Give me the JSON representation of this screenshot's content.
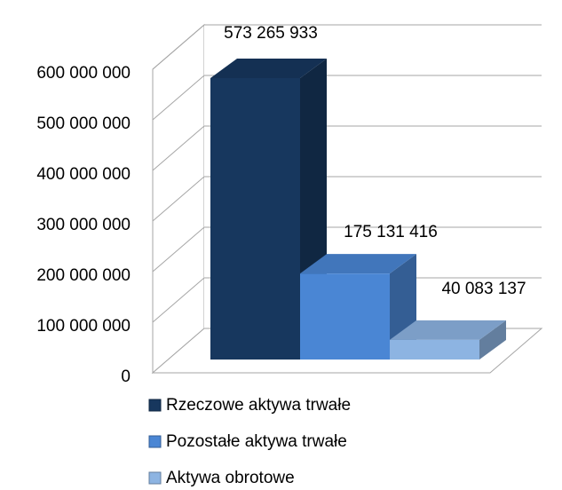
{
  "chart_data": {
    "type": "bar",
    "series": [
      {
        "name": "Rzeczowe aktywa trwałe",
        "color": "#17375e",
        "values": [
          573265933
        ],
        "value_labels": [
          "573 265 933"
        ]
      },
      {
        "name": "Pozostałe aktywa trwałe",
        "color": "#4a86d4",
        "values": [
          175131416
        ],
        "value_labels": [
          "175 131 416"
        ]
      },
      {
        "name": "Aktywa obrotowe",
        "color": "#8db4e2",
        "values": [
          40083137
        ],
        "value_labels": [
          "40 083 137"
        ]
      }
    ],
    "ylim": [
      0,
      600000000
    ],
    "yticks": [
      0,
      {
        "value": 100000000,
        "label": "100 000 000"
      },
      {
        "value": 200000000,
        "label": "200 000 000"
      },
      {
        "value": 300000000,
        "label": "300 000 000"
      },
      {
        "value": 400000000,
        "label": "400 000 000"
      },
      {
        "value": 500000000,
        "label": "500 000 000"
      },
      {
        "value": 600000000,
        "label": "600 000 000"
      }
    ],
    "grid": true,
    "legend": "bottom"
  }
}
